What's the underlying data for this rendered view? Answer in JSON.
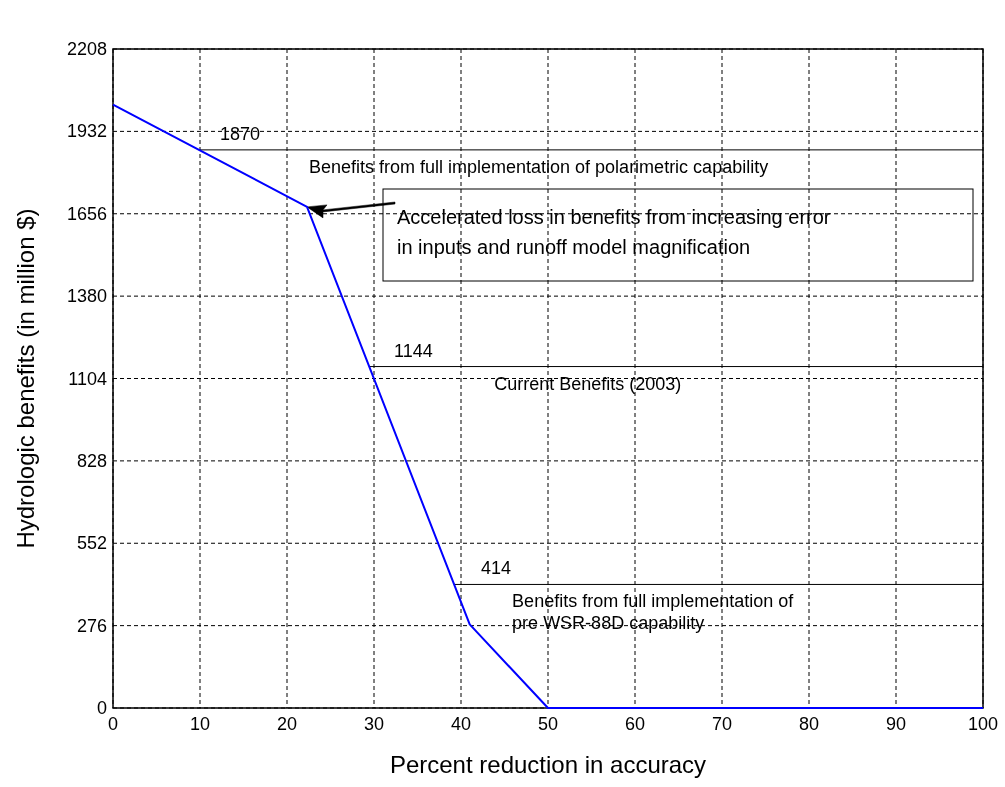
{
  "chart_data": {
    "type": "line",
    "xlabel": "Percent reduction in accuracy",
    "ylabel": "Hydrologic benefits (in million $)",
    "x": [
      0,
      22.3,
      41,
      50,
      100
    ],
    "series": [
      {
        "color": "#0000ff",
        "values": [
          2022,
          1679,
          280,
          0,
          0
        ]
      }
    ],
    "xlim": [
      0,
      100
    ],
    "xticks": [
      0,
      10,
      20,
      30,
      40,
      50,
      60,
      70,
      80,
      90,
      100
    ],
    "ylim": [
      0,
      2208
    ],
    "yticks": [
      0,
      276,
      552,
      828,
      1104,
      1380,
      1656,
      1932,
      2208
    ],
    "grid": true,
    "marker": "none",
    "line_style": "solid",
    "ref_lines": [
      {
        "axis": "y",
        "value": 1870,
        "label": "Benefits from full implementation of polarimetric capability",
        "color": "#000000"
      },
      {
        "axis": "y",
        "value": 1144,
        "label": "Current Benefits (2003)",
        "color": "#000000"
      },
      {
        "axis": "y",
        "value": 414,
        "label": "Benefits from full implementation of\npre WSR-88D capability",
        "color": "#000000"
      }
    ],
    "annotations": [
      {
        "text": "1870",
        "x": 10,
        "y": 1870
      },
      {
        "text": "1144",
        "x": 30,
        "y": 1144
      },
      {
        "text": "414",
        "x": 40,
        "y": 414
      },
      {
        "text": "Accelerated loss in benefits from increasing error\nin inputs and runoff model magnification"
      }
    ]
  }
}
